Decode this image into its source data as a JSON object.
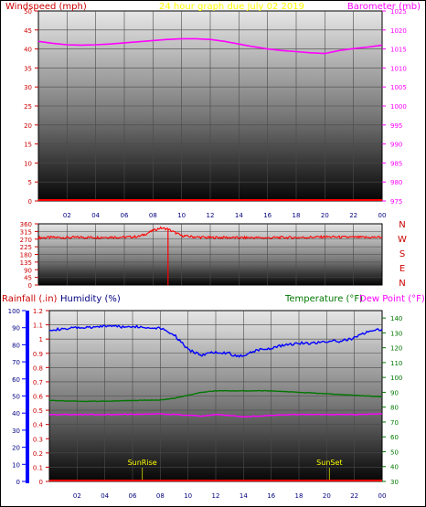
{
  "colors": {
    "red": "#ff0000",
    "dark_red": "#cc0000",
    "magenta": "#ff00ff",
    "yellow": "#ffff00",
    "blue": "#0000ff",
    "navy": "#000080",
    "green": "#007700",
    "sunline": "#b0b000"
  },
  "chart_data": [
    {
      "type": "line",
      "panel": "wind-pressure",
      "labels": {
        "left_title": "Windspeed (mph)",
        "center_title": "24 hour graph due      July 02 2019",
        "right_title": "Barometer (mb)"
      },
      "left_axis": {
        "ticks": [
          "50",
          "45",
          "40",
          "35",
          "30",
          "25",
          "20",
          "15",
          "10",
          "5",
          "0"
        ],
        "ylim": [
          0,
          50
        ]
      },
      "right_axis": {
        "ticks": [
          "1025",
          "1020",
          "1015",
          "1010",
          "1005",
          "1000",
          "995",
          "990",
          "985",
          "980",
          "975"
        ],
        "ylim": [
          975,
          1025
        ]
      },
      "x_ticks": [
        "02",
        "04",
        "06",
        "08",
        "10",
        "12",
        "14",
        "16",
        "18",
        "20",
        "22",
        "00"
      ],
      "series": [
        {
          "axis": "right",
          "color": "#ff00ff",
          "x": [
            0,
            1,
            2,
            3,
            4,
            5,
            6,
            7,
            8,
            9,
            10,
            11,
            12,
            13,
            14,
            15,
            16,
            17,
            18,
            19,
            20,
            21,
            22,
            23,
            24
          ],
          "values": [
            1017.0,
            1016.5,
            1016.1,
            1016.0,
            1016.1,
            1016.3,
            1016.6,
            1016.9,
            1017.2,
            1017.5,
            1017.7,
            1017.7,
            1017.5,
            1017.0,
            1016.3,
            1015.6,
            1015.0,
            1014.6,
            1014.3,
            1014.0,
            1013.8,
            1014.6,
            1015.1,
            1015.5,
            1016.0
          ]
        },
        {
          "axis": "left",
          "color": "#ff0000",
          "x": [
            0,
            24
          ],
          "values": [
            0,
            0
          ]
        }
      ]
    },
    {
      "type": "line",
      "panel": "wind-direction",
      "left_axis": {
        "ticks": [
          "360",
          "315",
          "270",
          "225",
          "180",
          "135",
          "90",
          "45",
          "0"
        ],
        "ylim": [
          0,
          360
        ]
      },
      "compass_labels": [
        "N",
        "W",
        "S",
        "E",
        "N"
      ],
      "series": [
        {
          "color": "#ff0000",
          "x": [
            0,
            1,
            2,
            3,
            4,
            5,
            6,
            7,
            7.5,
            8,
            8.5,
            9,
            9.5,
            10,
            11,
            12,
            13,
            14,
            15,
            16,
            17,
            18,
            19,
            20,
            21,
            22,
            23,
            24
          ],
          "values": [
            278,
            280,
            279,
            281,
            280,
            282,
            281,
            285,
            300,
            320,
            335,
            330,
            310,
            290,
            282,
            279,
            280,
            278,
            279,
            277,
            280,
            279,
            281,
            283,
            282,
            281,
            280,
            282
          ]
        }
      ],
      "spike": {
        "x": 9.05,
        "from": 0,
        "to": 330
      }
    },
    {
      "type": "line",
      "panel": "rain-humidity-temp",
      "labels": {
        "rainfall": "Rainfall (.in)",
        "humidity": "Humidity (%)",
        "temperature": "Temperature (°F)",
        "dewpoint": "Dew Point (°F)",
        "sunrise": "SunRise",
        "sunset": "SunSet"
      },
      "humidity_axis": {
        "ticks": [
          "100",
          "90",
          "80",
          "70",
          "60",
          "50",
          "40",
          "30",
          "20",
          "10",
          "0"
        ],
        "ylim": [
          0,
          100
        ]
      },
      "rain_axis": {
        "ticks": [
          "1.2",
          "1.1",
          "1",
          "0.9",
          "0.8",
          "0.7",
          "0.6",
          "0.5",
          "0.4",
          "0.3",
          "0.2",
          "0.1",
          "0"
        ],
        "ylim": [
          0,
          1.2
        ]
      },
      "temp_axis": {
        "ticks": [
          "140",
          "130",
          "120",
          "110",
          "100",
          "90",
          "80",
          "70",
          "60",
          "50",
          "40",
          "30"
        ],
        "ylim": [
          30,
          145
        ]
      },
      "x_ticks": [
        "02",
        "04",
        "06",
        "08",
        "10",
        "12",
        "14",
        "16",
        "18",
        "20",
        "22",
        "00"
      ],
      "sunrise_hour": 6.7,
      "sunset_hour": 20.2,
      "series": [
        {
          "name": "Humidity (%)",
          "axis": "humidity",
          "color": "#0000ff",
          "x": [
            0,
            1,
            2,
            3,
            4,
            5,
            5.5,
            6,
            7,
            8,
            9,
            10,
            11,
            12,
            13,
            13.5,
            14,
            15,
            16,
            17,
            18,
            19,
            20,
            21,
            22,
            23,
            24
          ],
          "values": [
            89,
            89,
            90,
            90,
            91,
            91,
            90,
            91,
            90,
            90,
            86,
            77,
            74,
            76,
            75,
            73,
            74,
            77,
            78,
            80,
            81,
            81,
            82,
            82,
            84,
            88,
            89
          ]
        },
        {
          "name": "Temperature (°F)",
          "axis": "temp",
          "color": "#007700",
          "x": [
            0,
            2,
            4,
            6,
            8,
            9,
            10,
            11,
            12,
            14,
            16,
            18,
            20,
            22,
            24
          ],
          "values": [
            84.5,
            84,
            84,
            84.5,
            84.8,
            86,
            88,
            90,
            91,
            91,
            91,
            90,
            89,
            88,
            87
          ]
        },
        {
          "name": "Dew Point (°F)",
          "axis": "temp",
          "color": "#ff00ff",
          "x": [
            0,
            2,
            4,
            6,
            8,
            10,
            11,
            12,
            13,
            14,
            15,
            16,
            18,
            20,
            22,
            24
          ],
          "values": [
            75,
            75,
            75,
            75.2,
            75.5,
            74.5,
            74,
            75,
            74.5,
            73.5,
            74,
            74.5,
            75,
            75,
            75,
            75.5
          ]
        },
        {
          "name": "Rainfall (.in)",
          "axis": "rain",
          "color": "#ff0000",
          "x": [
            0,
            24
          ],
          "values": [
            0,
            0
          ]
        }
      ]
    }
  ]
}
